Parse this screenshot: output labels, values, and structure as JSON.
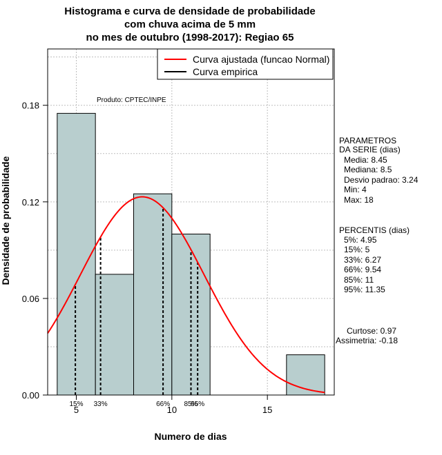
{
  "chart_data": {
    "type": "bar",
    "title_lines": [
      "Histograma e curva de densidade de probabilidade",
      "com chuva acima de 5 mm",
      "no mes de outubro (1998-2017): Regiao 65"
    ],
    "xlabel": "Numero de dias",
    "ylabel": "Densidade de probabilidade",
    "xlim": [
      3.5,
      18.5
    ],
    "ylim": [
      0,
      0.215
    ],
    "xticks": [
      5,
      10,
      15
    ],
    "yticks": [
      0.0,
      0.06,
      0.12,
      0.18
    ],
    "ytick_labels": [
      "0.00",
      "0.06",
      "0.12",
      "0.18"
    ],
    "bins": [
      {
        "start": 4,
        "end": 6,
        "density": 0.175
      },
      {
        "start": 6,
        "end": 8,
        "density": 0.075
      },
      {
        "start": 8,
        "end": 10,
        "density": 0.125
      },
      {
        "start": 10,
        "end": 12,
        "density": 0.1
      },
      {
        "start": 16,
        "end": 18,
        "density": 0.025
      }
    ],
    "bar_color": "#b8cece",
    "fitted_curve": {
      "name": "Curva ajustada (funcao Normal)",
      "mean": 8.45,
      "sd": 3.24,
      "color": "#ff0000"
    },
    "empirical_curve": {
      "name": "Curva empirica",
      "color": "#000000"
    },
    "percentile_lines": [
      {
        "x": 4.95,
        "label": ""
      },
      {
        "x": 6.27,
        "label": "33%"
      },
      {
        "x": 9.54,
        "label": "66%"
      },
      {
        "x": 11,
        "label": "85%"
      },
      {
        "x": 11.35,
        "label": "95%"
      }
    ],
    "percentile_label_15": {
      "x": 5,
      "label": "15%"
    },
    "product_label": "Produto: CPTEC/INPE",
    "legend_position": "top-right",
    "grid": true
  },
  "params": {
    "header": [
      "PARAMETROS",
      "DA SERIE (dias)"
    ],
    "lines": [
      "Media: 8.45",
      "Mediana: 8.5",
      "Desvio padrao: 3.24",
      "Min: 4",
      "Max: 18"
    ]
  },
  "percentis": {
    "header": "PERCENTIS (dias)",
    "lines": [
      "5%: 4.95",
      "15%: 5",
      "33%: 6.27",
      "66%: 9.54",
      "85%: 11",
      "95%: 11.35"
    ]
  },
  "shape": {
    "lines": [
      "Curtose: 0.97",
      "Assimetria: -0.18"
    ]
  }
}
